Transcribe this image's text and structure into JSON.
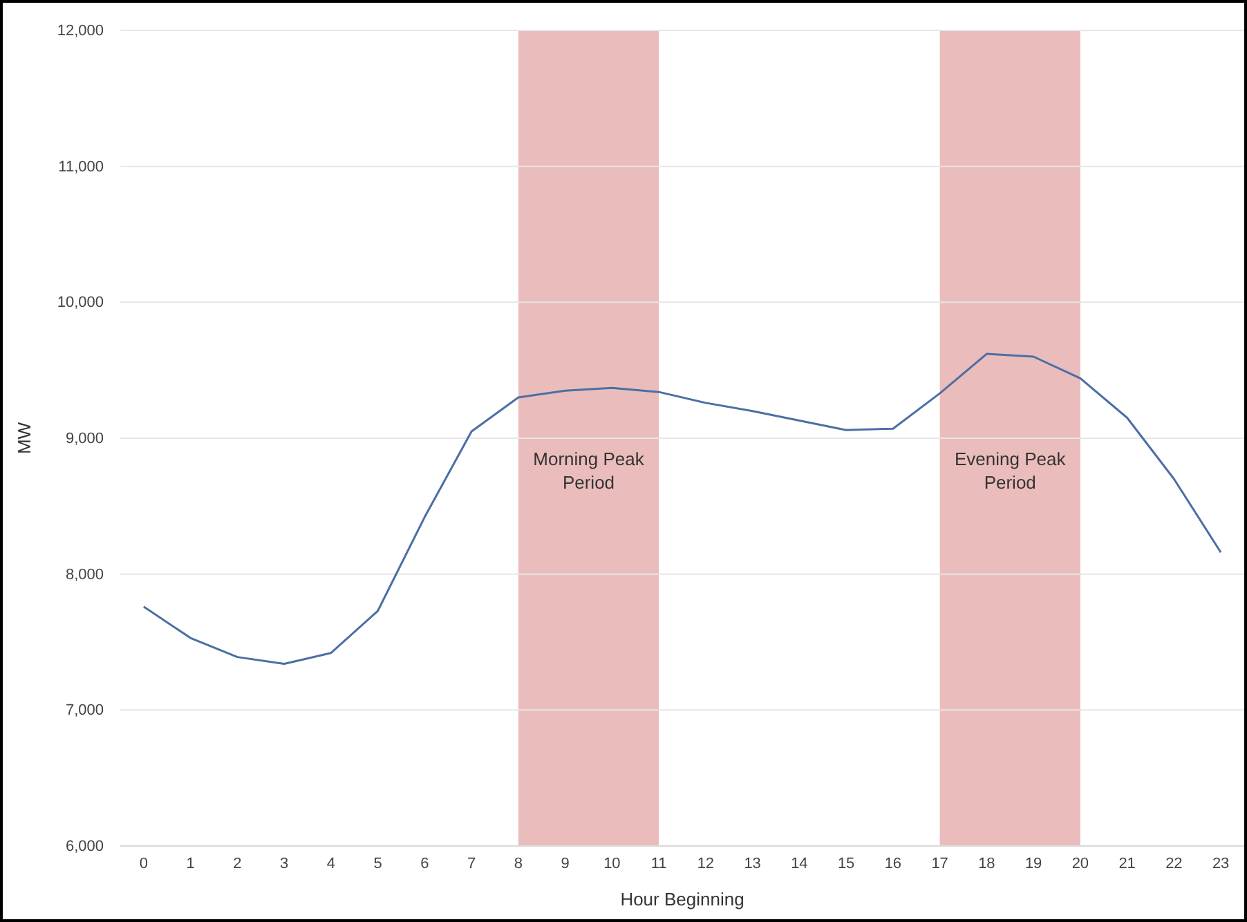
{
  "chart_data": {
    "type": "line",
    "xlabel": "Hour Beginning",
    "ylabel": "MW",
    "x": [
      0,
      1,
      2,
      3,
      4,
      5,
      6,
      7,
      8,
      9,
      10,
      11,
      12,
      13,
      14,
      15,
      16,
      17,
      18,
      19,
      20,
      21,
      22,
      23
    ],
    "series": [
      {
        "color": "#4a6fa5",
        "values": [
          7760,
          7530,
          7390,
          7340,
          7420,
          7730,
          8420,
          9050,
          9300,
          9350,
          9370,
          9340,
          9260,
          9200,
          9130,
          9060,
          9070,
          9330,
          9620,
          9600,
          9440,
          9150,
          8700,
          8160
        ]
      }
    ],
    "xlim": [
      -0.5,
      23.5
    ],
    "xticks": [
      0,
      1,
      2,
      3,
      4,
      5,
      6,
      7,
      8,
      9,
      10,
      11,
      12,
      13,
      14,
      15,
      16,
      17,
      18,
      19,
      20,
      21,
      22,
      23
    ],
    "ylim": [
      6000,
      12000
    ],
    "yticks": [
      {
        "value": 6000,
        "label": "6,000"
      },
      {
        "value": 7000,
        "label": "7,000"
      },
      {
        "value": 8000,
        "label": "8,000"
      },
      {
        "value": 9000,
        "label": "9,000"
      },
      {
        "value": 10000,
        "label": "10,000"
      },
      {
        "value": 11000,
        "label": "11,000"
      },
      {
        "value": 12000,
        "label": "12,000"
      }
    ],
    "bands": [
      {
        "axis": "x",
        "from": 8,
        "to": 11,
        "label": "Morning Peak Period",
        "color": "#ebbcbc"
      },
      {
        "axis": "x",
        "from": 17,
        "to": 20,
        "label": "Evening Peak Period",
        "color": "#ebbcbc"
      }
    ],
    "grid": "y",
    "marker": "none",
    "line_style": "solid"
  }
}
